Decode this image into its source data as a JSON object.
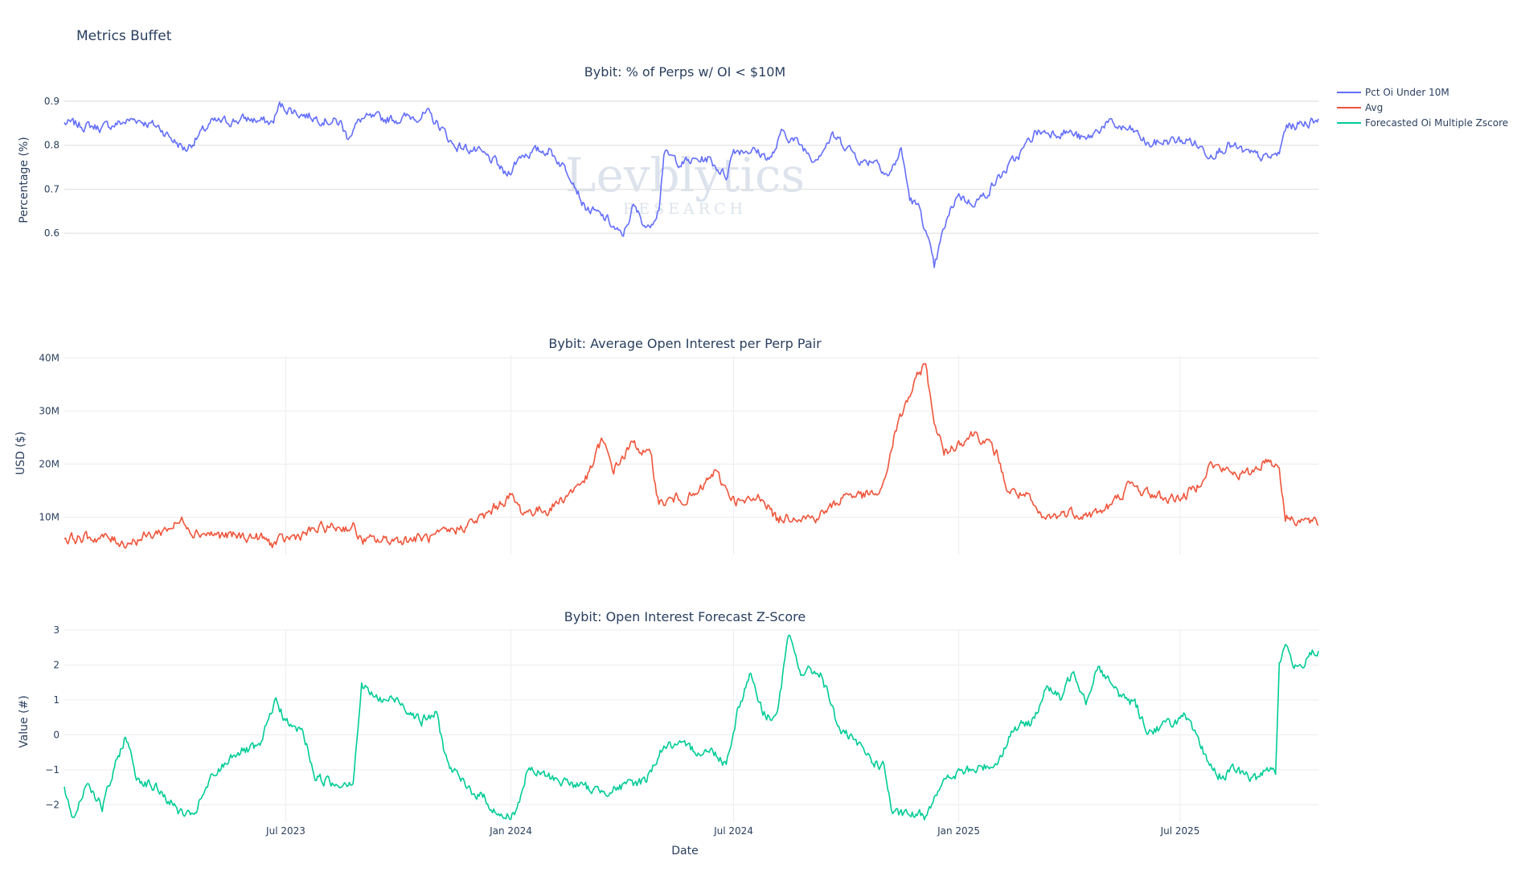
{
  "page": {
    "title": "Metrics Buffet",
    "watermark": {
      "main": "Levblytics",
      "sub": "RESEARCH"
    },
    "xaxis_title": "Date"
  },
  "x_axis": {
    "range": [
      "2023-01-01",
      "2025-10-22"
    ],
    "ticks": [
      {
        "date": "2023-07-01",
        "label": "Jul 2023"
      },
      {
        "date": "2024-01-01",
        "label": "Jan 2024"
      },
      {
        "date": "2024-07-01",
        "label": "Jul 2024"
      },
      {
        "date": "2025-01-01",
        "label": "Jan 2025"
      },
      {
        "date": "2025-07-01",
        "label": "Jul 2025"
      }
    ]
  },
  "legend": [
    {
      "name": "Pct Oi Under 10M",
      "color": "#636efa"
    },
    {
      "name": "Avg",
      "color": "#ef553b"
    },
    {
      "name": "Forecasted Oi Multiple Zscore",
      "color": "#00cc96"
    }
  ],
  "chart_data": [
    {
      "type": "line",
      "title": "Bybit: % of Perps w/ OI < $10M",
      "ylabel": "Percentage (%)",
      "xlabel": "",
      "series_name": "Pct Oi Under 10M",
      "color": "#636efa",
      "ylim": [
        0.5,
        0.92
      ],
      "y_ticks": [
        0.6,
        0.7,
        0.8,
        0.9
      ],
      "y_tick_labels": [
        "0.6",
        "0.7",
        "0.8",
        "0.9"
      ],
      "anchors": [
        [
          "2023-01-01",
          0.85
        ],
        [
          "2023-02-01",
          0.84
        ],
        [
          "2023-03-01",
          0.86
        ],
        [
          "2023-03-20",
          0.84
        ],
        [
          "2023-04-01",
          0.81
        ],
        [
          "2023-04-10",
          0.79
        ],
        [
          "2023-05-01",
          0.85
        ],
        [
          "2023-06-01",
          0.86
        ],
        [
          "2023-06-20",
          0.85
        ],
        [
          "2023-06-26",
          0.89
        ],
        [
          "2023-07-15",
          0.87
        ],
        [
          "2023-08-15",
          0.85
        ],
        [
          "2023-08-20",
          0.82
        ],
        [
          "2023-09-01",
          0.86
        ],
        [
          "2023-10-01",
          0.86
        ],
        [
          "2023-10-25",
          0.87
        ],
        [
          "2023-11-05",
          0.84
        ],
        [
          "2023-11-15",
          0.8
        ],
        [
          "2023-12-01",
          0.79
        ],
        [
          "2023-12-20",
          0.76
        ],
        [
          "2023-12-28",
          0.73
        ],
        [
          "2024-01-10",
          0.78
        ],
        [
          "2024-02-01",
          0.79
        ],
        [
          "2024-02-20",
          0.73
        ],
        [
          "2024-03-01",
          0.66
        ],
        [
          "2024-03-20",
          0.63
        ],
        [
          "2024-04-01",
          0.59
        ],
        [
          "2024-04-10",
          0.66
        ],
        [
          "2024-04-22",
          0.61
        ],
        [
          "2024-05-01",
          0.66
        ],
        [
          "2024-05-05",
          0.78
        ],
        [
          "2024-05-20",
          0.76
        ],
        [
          "2024-06-10",
          0.77
        ],
        [
          "2024-06-25",
          0.73
        ],
        [
          "2024-07-01",
          0.79
        ],
        [
          "2024-07-15",
          0.79
        ],
        [
          "2024-08-01",
          0.77
        ],
        [
          "2024-08-10",
          0.83
        ],
        [
          "2024-08-25",
          0.8
        ],
        [
          "2024-09-05",
          0.77
        ],
        [
          "2024-09-20",
          0.82
        ],
        [
          "2024-10-01",
          0.8
        ],
        [
          "2024-10-15",
          0.76
        ],
        [
          "2024-10-25",
          0.77
        ],
        [
          "2024-11-05",
          0.73
        ],
        [
          "2024-11-15",
          0.79
        ],
        [
          "2024-11-22",
          0.68
        ],
        [
          "2024-12-01",
          0.65
        ],
        [
          "2024-12-08",
          0.57
        ],
        [
          "2024-12-12",
          0.52
        ],
        [
          "2024-12-20",
          0.61
        ],
        [
          "2024-12-31",
          0.69
        ],
        [
          "2025-01-10",
          0.67
        ],
        [
          "2025-01-20",
          0.68
        ],
        [
          "2025-02-01",
          0.72
        ],
        [
          "2025-02-20",
          0.78
        ],
        [
          "2025-03-05",
          0.83
        ],
        [
          "2025-04-01",
          0.83
        ],
        [
          "2025-04-15",
          0.81
        ],
        [
          "2025-05-01",
          0.85
        ],
        [
          "2025-05-25",
          0.83
        ],
        [
          "2025-06-05",
          0.8
        ],
        [
          "2025-06-20",
          0.81
        ],
        [
          "2025-07-10",
          0.81
        ],
        [
          "2025-07-25",
          0.78
        ],
        [
          "2025-08-10",
          0.8
        ],
        [
          "2025-08-25",
          0.78
        ],
        [
          "2025-09-10",
          0.77
        ],
        [
          "2025-09-20",
          0.78
        ],
        [
          "2025-09-25",
          0.84
        ],
        [
          "2025-10-10",
          0.85
        ],
        [
          "2025-10-22",
          0.86
        ]
      ]
    },
    {
      "type": "line",
      "title": "Bybit: Average Open Interest per Perp Pair",
      "ylabel": "USD ($)",
      "xlabel": "",
      "series_name": "Avg",
      "color": "#ef553b",
      "ylim": [
        3000000,
        40500000
      ],
      "y_ticks": [
        10000000,
        20000000,
        30000000,
        40000000
      ],
      "y_tick_labels": [
        "10M",
        "20M",
        "30M",
        "40M"
      ],
      "anchors": [
        [
          "2023-01-01",
          6000000
        ],
        [
          "2023-02-01",
          6200000
        ],
        [
          "2023-02-20",
          5200000
        ],
        [
          "2023-03-15",
          6800000
        ],
        [
          "2023-04-10",
          9500000
        ],
        [
          "2023-04-15",
          7500000
        ],
        [
          "2023-05-10",
          6500000
        ],
        [
          "2023-06-10",
          6200000
        ],
        [
          "2023-06-20",
          5000000
        ],
        [
          "2023-07-10",
          6500000
        ],
        [
          "2023-08-01",
          8000000
        ],
        [
          "2023-08-25",
          8200000
        ],
        [
          "2023-09-01",
          5500000
        ],
        [
          "2023-10-01",
          5800000
        ],
        [
          "2023-11-01",
          6200000
        ],
        [
          "2023-11-20",
          8000000
        ],
        [
          "2023-12-10",
          10000000
        ],
        [
          "2023-12-25",
          13000000
        ],
        [
          "2024-01-01",
          14000000
        ],
        [
          "2024-01-10",
          11000000
        ],
        [
          "2024-02-01",
          11500000
        ],
        [
          "2024-02-20",
          15000000
        ],
        [
          "2024-03-05",
          18000000
        ],
        [
          "2024-03-15",
          24500000
        ],
        [
          "2024-03-25",
          19000000
        ],
        [
          "2024-04-10",
          24000000
        ],
        [
          "2024-04-25",
          21000000
        ],
        [
          "2024-05-01",
          12500000
        ],
        [
          "2024-05-15",
          13500000
        ],
        [
          "2024-06-01",
          14000000
        ],
        [
          "2024-06-15",
          18500000
        ],
        [
          "2024-07-01",
          13500000
        ],
        [
          "2024-07-10",
          12500000
        ],
        [
          "2024-07-25",
          14000000
        ],
        [
          "2024-08-05",
          9500000
        ],
        [
          "2024-08-20",
          10500000
        ],
        [
          "2024-09-05",
          9800000
        ],
        [
          "2024-09-20",
          12000000
        ],
        [
          "2024-10-01",
          14500000
        ],
        [
          "2024-10-15",
          14000000
        ],
        [
          "2024-10-30",
          14500000
        ],
        [
          "2024-11-10",
          26000000
        ],
        [
          "2024-11-20",
          32000000
        ],
        [
          "2024-12-05",
          39500000
        ],
        [
          "2024-12-10",
          30000000
        ],
        [
          "2024-12-20",
          22000000
        ],
        [
          "2024-12-31",
          24000000
        ],
        [
          "2025-01-15",
          26000000
        ],
        [
          "2025-02-01",
          22000000
        ],
        [
          "2025-02-10",
          15000000
        ],
        [
          "2025-02-25",
          14000000
        ],
        [
          "2025-03-10",
          9500000
        ],
        [
          "2025-04-01",
          11000000
        ],
        [
          "2025-04-20",
          10500000
        ],
        [
          "2025-05-05",
          12000000
        ],
        [
          "2025-05-20",
          16000000
        ],
        [
          "2025-06-05",
          14500000
        ],
        [
          "2025-06-20",
          13500000
        ],
        [
          "2025-07-05",
          14000000
        ],
        [
          "2025-07-15",
          16000000
        ],
        [
          "2025-07-25",
          20000000
        ],
        [
          "2025-08-10",
          18500000
        ],
        [
          "2025-08-25",
          18000000
        ],
        [
          "2025-09-10",
          21000000
        ],
        [
          "2025-09-20",
          19500000
        ],
        [
          "2025-09-25",
          10000000
        ],
        [
          "2025-10-10",
          9500000
        ],
        [
          "2025-10-22",
          8500000
        ]
      ]
    },
    {
      "type": "line",
      "title": "Bybit: Open Interest Forecast Z-Score",
      "ylabel": "Value (#)",
      "xlabel": "Date",
      "series_name": "Forecasted Oi Multiple Zscore",
      "color": "#00cc96",
      "ylim": [
        -2.5,
        3.0
      ],
      "y_ticks": [
        -2,
        -1,
        0,
        1,
        2,
        3
      ],
      "y_tick_labels": [
        "−2",
        "−1",
        "0",
        "1",
        "2",
        "3"
      ],
      "anchors": [
        [
          "2023-01-01",
          -1.5
        ],
        [
          "2023-01-08",
          -2.4
        ],
        [
          "2023-01-20",
          -1.3
        ],
        [
          "2023-02-01",
          -2.1
        ],
        [
          "2023-02-20",
          0.0
        ],
        [
          "2023-03-01",
          -1.2
        ],
        [
          "2023-03-20",
          -1.6
        ],
        [
          "2023-04-05",
          -2.2
        ],
        [
          "2023-04-15",
          -2.4
        ],
        [
          "2023-05-01",
          -1.3
        ],
        [
          "2023-05-20",
          -0.5
        ],
        [
          "2023-06-10",
          -0.4
        ],
        [
          "2023-06-22",
          1.0
        ],
        [
          "2023-07-05",
          0.2
        ],
        [
          "2023-07-15",
          0.1
        ],
        [
          "2023-07-25",
          -1.2
        ],
        [
          "2023-08-10",
          -1.4
        ],
        [
          "2023-08-25",
          -1.3
        ],
        [
          "2023-09-01",
          1.4
        ],
        [
          "2023-09-15",
          1.0
        ],
        [
          "2023-10-01",
          1.0
        ],
        [
          "2023-10-20",
          0.4
        ],
        [
          "2023-11-01",
          0.6
        ],
        [
          "2023-11-10",
          -0.8
        ],
        [
          "2023-11-25",
          -1.5
        ],
        [
          "2023-12-10",
          -1.8
        ],
        [
          "2023-12-25",
          -2.4
        ],
        [
          "2024-01-05",
          -2.2
        ],
        [
          "2024-01-15",
          -1.0
        ],
        [
          "2024-02-01",
          -1.2
        ],
        [
          "2024-02-20",
          -1.4
        ],
        [
          "2024-03-10",
          -1.6
        ],
        [
          "2024-04-01",
          -1.5
        ],
        [
          "2024-04-20",
          -1.3
        ],
        [
          "2024-05-05",
          -0.3
        ],
        [
          "2024-05-25",
          -0.4
        ],
        [
          "2024-06-15",
          -0.5
        ],
        [
          "2024-06-25",
          -0.8
        ],
        [
          "2024-07-05",
          0.8
        ],
        [
          "2024-07-15",
          1.8
        ],
        [
          "2024-07-25",
          0.6
        ],
        [
          "2024-08-05",
          0.5
        ],
        [
          "2024-08-15",
          2.8
        ],
        [
          "2024-08-25",
          1.8
        ],
        [
          "2024-09-10",
          1.8
        ],
        [
          "2024-09-25",
          0.2
        ],
        [
          "2024-10-10",
          -0.3
        ],
        [
          "2024-10-25",
          -0.8
        ],
        [
          "2024-11-01",
          -0.9
        ],
        [
          "2024-11-08",
          -2.3
        ],
        [
          "2024-11-20",
          -2.3
        ],
        [
          "2024-12-05",
          -2.3
        ],
        [
          "2024-12-15",
          -1.5
        ],
        [
          "2024-12-31",
          -1.1
        ],
        [
          "2025-01-15",
          -1.0
        ],
        [
          "2025-02-01",
          -0.8
        ],
        [
          "2025-02-15",
          0.2
        ],
        [
          "2025-02-28",
          0.3
        ],
        [
          "2025-03-15",
          1.4
        ],
        [
          "2025-03-25",
          1.0
        ],
        [
          "2025-04-05",
          1.9
        ],
        [
          "2025-04-15",
          1.0
        ],
        [
          "2025-04-25",
          2.0
        ],
        [
          "2025-05-10",
          1.2
        ],
        [
          "2025-05-25",
          0.9
        ],
        [
          "2025-06-05",
          0.1
        ],
        [
          "2025-06-20",
          0.3
        ],
        [
          "2025-07-05",
          0.5
        ],
        [
          "2025-07-20",
          -0.5
        ],
        [
          "2025-08-01",
          -1.2
        ],
        [
          "2025-08-15",
          -1.0
        ],
        [
          "2025-09-01",
          -1.3
        ],
        [
          "2025-09-10",
          -0.9
        ],
        [
          "2025-09-17",
          -1.0
        ],
        [
          "2025-09-20",
          2.0
        ],
        [
          "2025-09-25",
          2.6
        ],
        [
          "2025-10-05",
          1.8
        ],
        [
          "2025-10-15",
          2.4
        ],
        [
          "2025-10-22",
          2.4
        ]
      ]
    }
  ]
}
